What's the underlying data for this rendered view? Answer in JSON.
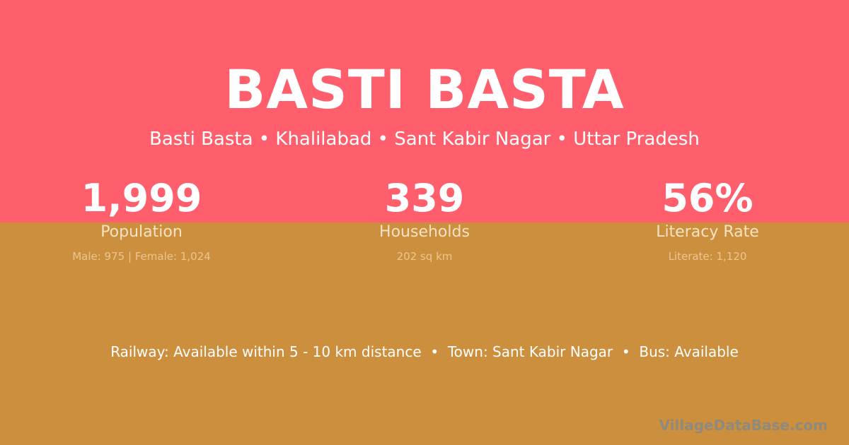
{
  "colors": {
    "top_bg": "#FF5F6D",
    "bottom_bg": "#CC8F3D"
  },
  "title": "BASTI BASTA",
  "subtitle": "Basti Basta • Khalilabad • Sant Kabir Nagar • Uttar Pradesh",
  "stats": [
    {
      "value": "1,999",
      "label": "Population",
      "sub": "Male: 975 | Female: 1,024"
    },
    {
      "value": "339",
      "label": "Households",
      "sub": "202 sq km"
    },
    {
      "value": "56%",
      "label": "Literacy Rate",
      "sub": "Literate: 1,120"
    }
  ],
  "facilities": "Railway: Available within 5 - 10 km distance  •  Town: Sant Kabir Nagar  •  Bus: Available",
  "brand": "VillageDataBase.com"
}
